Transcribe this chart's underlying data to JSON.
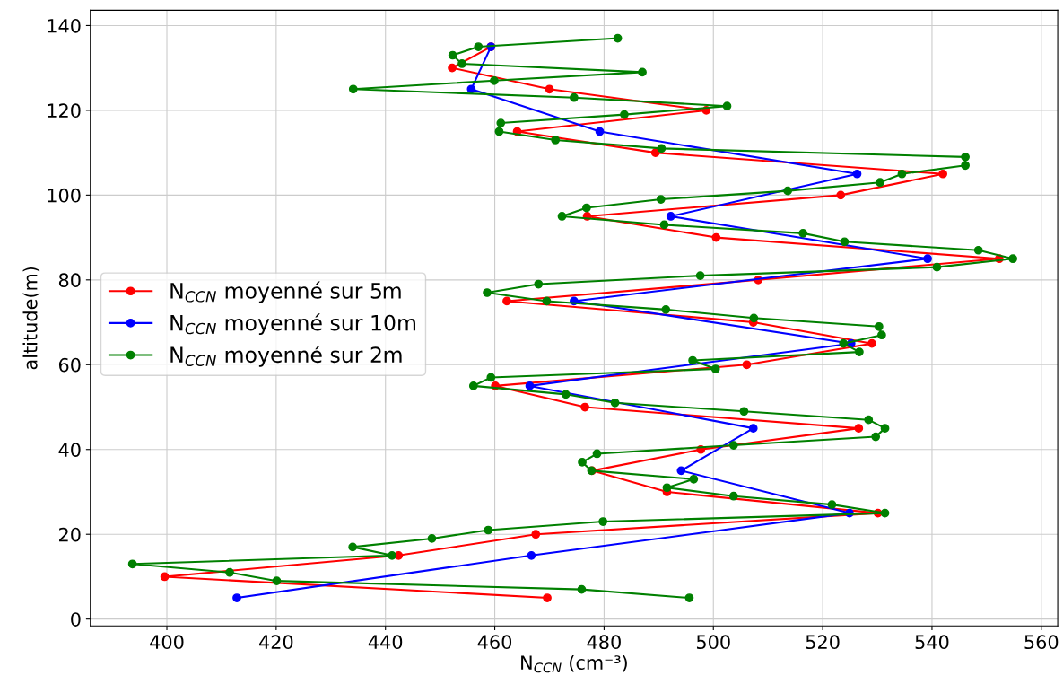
{
  "chart_data": {
    "type": "line",
    "xlabel": "N$_{CCN}$ (cm⁻³)",
    "ylabel": "altitude(m)",
    "xlim": [
      386,
      563
    ],
    "xticks": [
      400,
      420,
      440,
      460,
      480,
      500,
      520,
      540,
      560
    ],
    "ylim": [
      -1.6,
      143.6
    ],
    "yticks": [
      0,
      20,
      40,
      60,
      80,
      100,
      120,
      140
    ],
    "grid": true,
    "legend": "left",
    "marker": "circle",
    "line_style": "solid",
    "series": [
      {
        "name": "N$_{CCN}$ moyenné sur 5m",
        "color": "#ff0000",
        "x": [
          469.6,
          399.6,
          442.4,
          467.5,
          530.1,
          491.5,
          477.8,
          497.7,
          526.6,
          476.5,
          460.1,
          506.1,
          529.0,
          507.3,
          462.2,
          508.2,
          552.3,
          500.5,
          476.9,
          523.3,
          542.0,
          489.4,
          464.1,
          498.7,
          470.0,
          452.2,
          459.3
        ],
        "values": [
          5,
          10,
          15,
          20,
          25,
          30,
          35,
          40,
          45,
          50,
          55,
          60,
          65,
          70,
          75,
          80,
          85,
          90,
          95,
          100,
          105,
          110,
          115,
          120,
          125,
          130,
          135
        ]
      },
      {
        "name": "N$_{CCN}$ moyenné sur 10m",
        "color": "#0000ff",
        "x": [
          412.8,
          466.7,
          524.9,
          494.1,
          507.3,
          466.4,
          525.2,
          474.5,
          539.2,
          492.2,
          526.3,
          479.2,
          455.7,
          459.3
        ],
        "values": [
          5,
          15,
          25,
          35,
          45,
          55,
          65,
          75,
          85,
          95,
          105,
          115,
          125,
          135
        ]
      },
      {
        "name": "N$_{CCN}$ moyenné sur 2m",
        "color": "#008000",
        "x": [
          495.6,
          475.9,
          420.1,
          411.5,
          393.7,
          441.2,
          434.0,
          448.5,
          458.8,
          479.8,
          531.4,
          521.7,
          503.7,
          491.5,
          496.4,
          477.7,
          476.0,
          478.7,
          503.7,
          529.7,
          531.4,
          528.4,
          505.6,
          482.0,
          473.0,
          456.1,
          459.3,
          500.4,
          496.2,
          526.7,
          523.8,
          530.8,
          530.3,
          507.4,
          491.3,
          469.5,
          458.6,
          468.0,
          497.6,
          540.9,
          554.8,
          548.5,
          524.0,
          516.4,
          491.0,
          472.3,
          476.8,
          490.4,
          513.6,
          530.5,
          534.5,
          546.1,
          546.1,
          490.5,
          471.1,
          460.8,
          461.1,
          483.7,
          502.5,
          474.5,
          434.1,
          459.9,
          487.0,
          454.0,
          452.3,
          457.0,
          482.5
        ],
        "values": [
          5,
          7,
          9,
          11,
          13,
          15,
          17,
          19,
          21,
          23,
          25,
          27,
          29,
          31,
          33,
          35,
          37,
          39,
          41,
          43,
          45,
          47,
          49,
          51,
          53,
          55,
          57,
          59,
          61,
          63,
          65,
          67,
          69,
          71,
          73,
          75,
          77,
          79,
          81,
          83,
          85,
          87,
          89,
          91,
          93,
          95,
          97,
          99,
          101,
          103,
          105,
          107,
          109,
          111,
          113,
          115,
          117,
          119,
          121,
          123,
          125,
          127,
          129,
          131,
          133,
          135,
          137
        ]
      }
    ]
  }
}
